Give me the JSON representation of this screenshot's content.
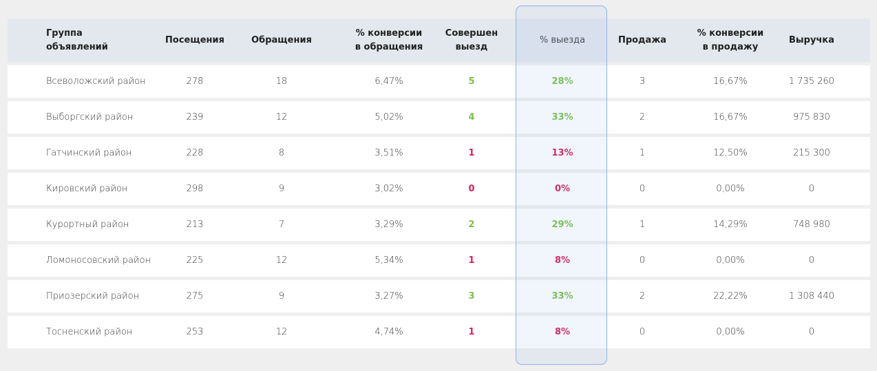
{
  "headers": [
    "Группа\nобъявлений",
    "Посещения",
    "Обращения",
    "% конверсии\nв обращения",
    "Совершен\nвыезд",
    "% выезда",
    "Продажа",
    "% конверсии\nв продажу",
    "Выручка"
  ],
  "colors": {
    "good": "#7cc04b",
    "bad": "#d81f5d",
    "highlight_border": "#8fb1ee",
    "header_bg": "#e3e8ee"
  },
  "rows": [
    {
      "name": "Всеволожский район",
      "visits": "278",
      "requests": "18",
      "conv_req": "6,47%",
      "trip": "5",
      "trip_pct": "28%",
      "status": "good",
      "sale": "3",
      "conv_sale": "16,67%",
      "revenue": "1 735 260"
    },
    {
      "name": "Выборгский район",
      "visits": "239",
      "requests": "12",
      "conv_req": "5,02%",
      "trip": "4",
      "trip_pct": "33%",
      "status": "good",
      "sale": "2",
      "conv_sale": "16,67%",
      "revenue": "975 830"
    },
    {
      "name": "Гатчинский район",
      "visits": "228",
      "requests": "8",
      "conv_req": "3,51%",
      "trip": "1",
      "trip_pct": "13%",
      "status": "bad",
      "sale": "1",
      "conv_sale": "12,50%",
      "revenue": "215 300"
    },
    {
      "name": "Кировский район",
      "visits": "298",
      "requests": "9",
      "conv_req": "3,02%",
      "trip": "0",
      "trip_pct": "0%",
      "status": "bad",
      "sale": "0",
      "conv_sale": "0,00%",
      "revenue": "0"
    },
    {
      "name": "Курортный район",
      "visits": "213",
      "requests": "7",
      "conv_req": "3,29%",
      "trip": "2",
      "trip_pct": "29%",
      "status": "good",
      "sale": "1",
      "conv_sale": "14,29%",
      "revenue": "748 980"
    },
    {
      "name": "Ломоносовский район",
      "visits": "225",
      "requests": "12",
      "conv_req": "5,34%",
      "trip": "1",
      "trip_pct": "8%",
      "status": "bad",
      "sale": "0",
      "conv_sale": "0,00%",
      "revenue": "0"
    },
    {
      "name": "Приозерский район",
      "visits": "275",
      "requests": "9",
      "conv_req": "3,27%",
      "trip": "3",
      "trip_pct": "33%",
      "status": "good",
      "sale": "2",
      "conv_sale": "22,22%",
      "revenue": "1 308 440"
    },
    {
      "name": "Тосненский район",
      "visits": "253",
      "requests": "12",
      "conv_req": "4,74%",
      "trip": "1",
      "trip_pct": "8%",
      "status": "bad",
      "sale": "0",
      "conv_sale": "0,00%",
      "revenue": "0"
    }
  ]
}
